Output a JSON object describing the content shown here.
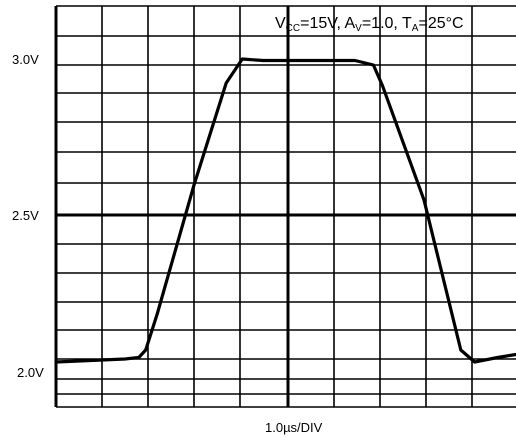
{
  "chart_data": {
    "type": "line",
    "title": "",
    "xlabel": "1.0µs/DIV",
    "ylabel": "",
    "y_tick_labels": [
      "3.0V",
      "2.5V",
      "2.0V"
    ],
    "y_ticks": [
      3.0,
      2.5,
      2.0
    ],
    "ylim": [
      1.95,
      3.17
    ],
    "xlim": [
      0,
      10
    ],
    "grid": true,
    "conditions": {
      "vcc_main": "V",
      "vcc_sub": "CC",
      "vcc_val": "=15V, ",
      "av_main": "A",
      "av_sub": "V",
      "av_val": "=1.0, ",
      "ta_main": "T",
      "ta_sub": "A",
      "ta_val": "=25°C"
    },
    "series": [
      {
        "name": "",
        "x": [
          0.0,
          1.5,
          1.8,
          1.95,
          2.2,
          3.0,
          3.7,
          4.05,
          4.5,
          5.0,
          6.5,
          6.9,
          7.1,
          8.0,
          8.8,
          9.1,
          9.6,
          10.0
        ],
        "y": [
          2.01,
          2.02,
          2.025,
          2.05,
          2.17,
          2.6,
          2.94,
          3.02,
          3.015,
          3.015,
          3.015,
          3.0,
          2.93,
          2.55,
          2.05,
          2.01,
          2.025,
          2.035
        ]
      }
    ]
  }
}
